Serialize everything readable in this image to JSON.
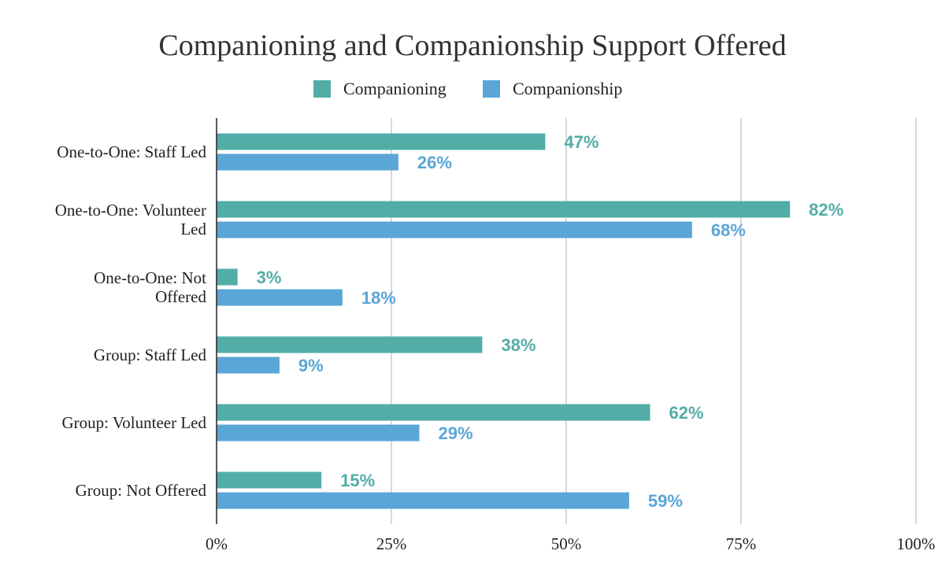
{
  "chart_data": {
    "type": "bar",
    "orientation": "horizontal",
    "title": "Companioning and Companionship Support Offered",
    "categories": [
      [
        "One-to-One: Staff Led"
      ],
      [
        "One-to-One: Volunteer",
        "Led"
      ],
      [
        "One-to-One: Not",
        "Offered"
      ],
      [
        "Group: Staff Led"
      ],
      [
        "Group: Volunteer Led"
      ],
      [
        "Group: Not Offered"
      ]
    ],
    "series": [
      {
        "name": "Companioning",
        "color": "#52ADA7",
        "values": [
          47,
          82,
          3,
          38,
          62,
          15
        ],
        "labels": [
          "47%",
          "82%",
          "3%",
          "38%",
          "62%",
          "15%"
        ]
      },
      {
        "name": "Companionship",
        "color": "#5AA6D6",
        "values": [
          26,
          68,
          18,
          9,
          29,
          59
        ],
        "labels": [
          "26%",
          "68%",
          "18%",
          "9%",
          "29%",
          "59%"
        ]
      }
    ],
    "x_ticks": [
      "0%",
      "25%",
      "50%",
      "75%",
      "100%"
    ],
    "xlim": [
      0,
      100
    ],
    "grid": true,
    "legend_position": "top-center",
    "xlabel": "",
    "ylabel": ""
  }
}
